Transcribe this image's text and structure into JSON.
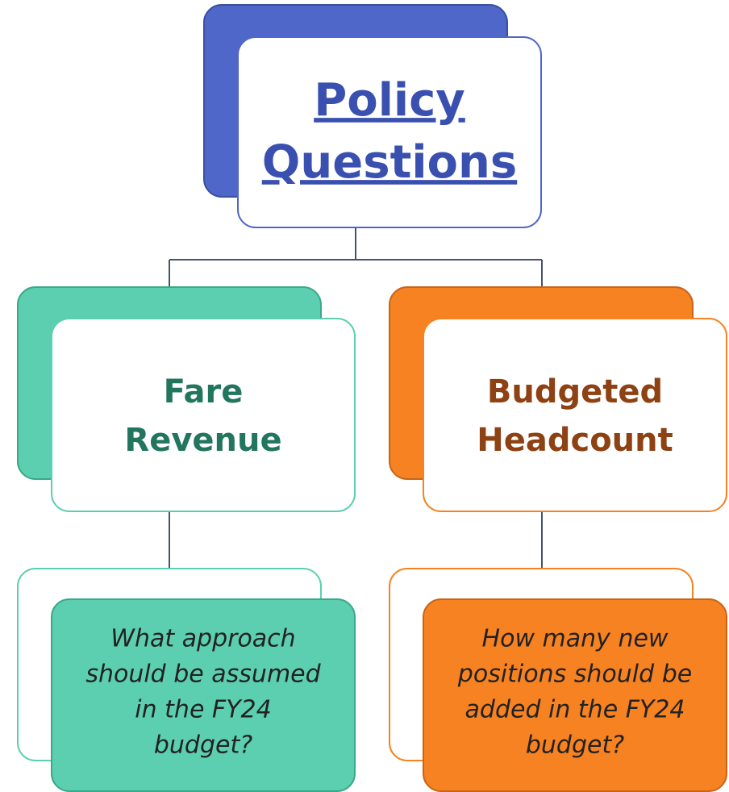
{
  "root": {
    "title_lines": [
      "Policy",
      "Questions"
    ]
  },
  "nodes": [
    {
      "title_lines": [
        "Fare",
        "Revenue"
      ],
      "question_lines": [
        "What approach",
        "should be assumed",
        "in the FY24",
        "budget?"
      ]
    },
    {
      "title_lines": [
        "Budgeted",
        "Headcount"
      ],
      "question_lines": [
        "How many new",
        "positions should be",
        "added in the FY24",
        "budget?"
      ]
    }
  ]
}
